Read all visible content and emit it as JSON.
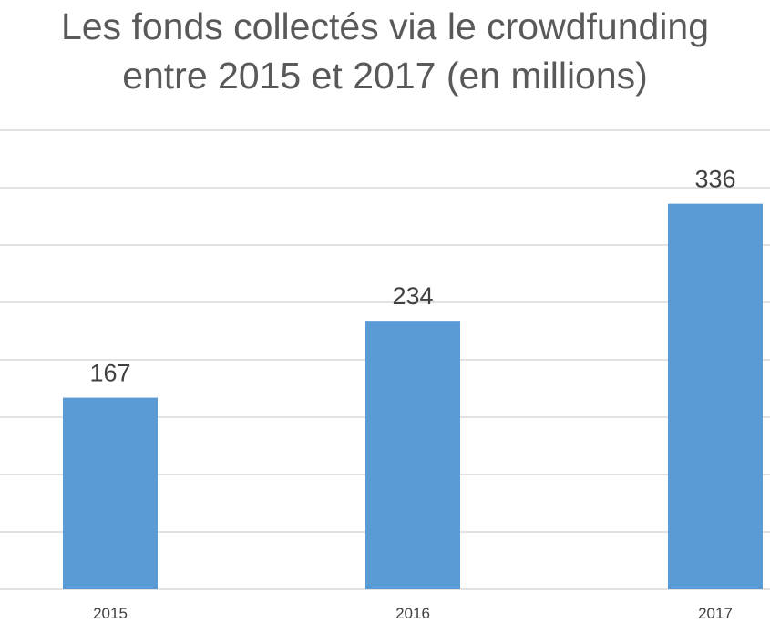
{
  "chart_data": {
    "type": "bar",
    "title_lines": [
      "Les fonds collectés via le crowdfunding",
      "entre 2015 et 2017 (en millions)"
    ],
    "categories": [
      "2015",
      "2016",
      "2017"
    ],
    "values": [
      167,
      234,
      336
    ],
    "data_labels": [
      "167",
      "234",
      "336"
    ],
    "xlabel": "",
    "ylabel": "",
    "ylim": [
      0,
      400
    ],
    "y_tick_step": 50,
    "grid": true,
    "legend": "none",
    "colors": {
      "bar": "#5b9bd5",
      "grid": "#d9d9d9",
      "title": "#595959",
      "labels": "#404040"
    }
  }
}
